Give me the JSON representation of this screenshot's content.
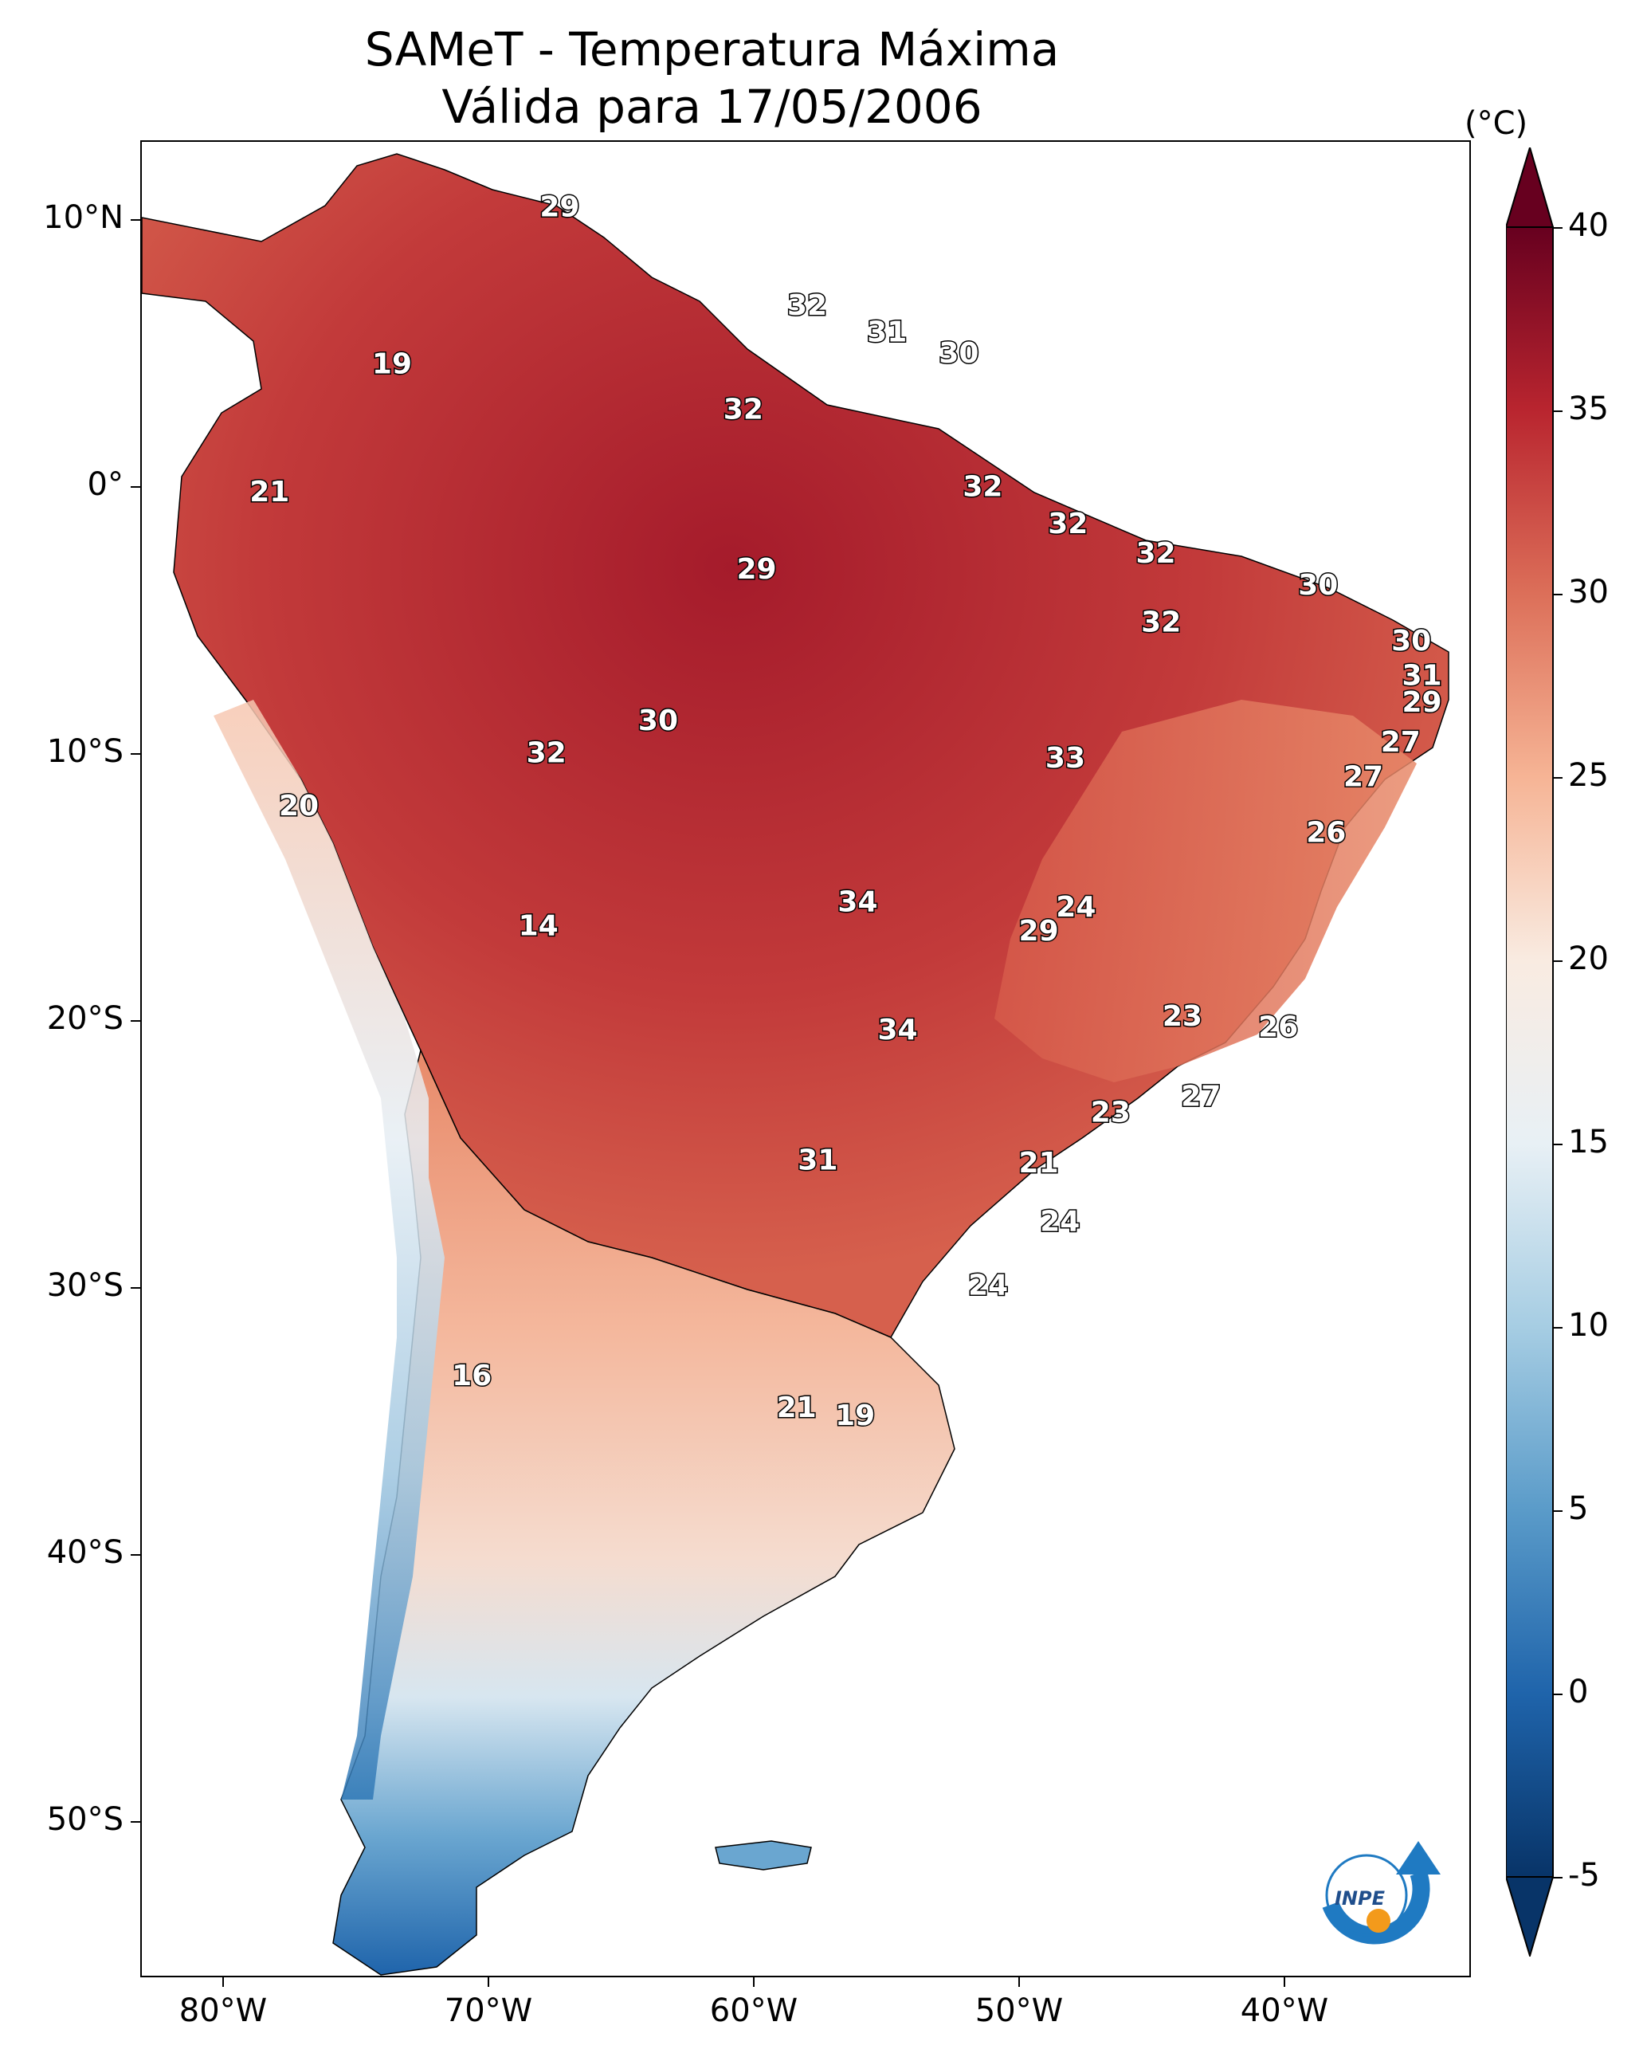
{
  "title": {
    "line1": "SAMeT - Temperatura Máxima",
    "line2": "Válida para 17/05/2006"
  },
  "axes": {
    "lat_ticks": [
      "10°N",
      "0°",
      "10°S",
      "20°S",
      "30°S",
      "40°S",
      "50°S"
    ],
    "lon_ticks": [
      "80°W",
      "70°W",
      "60°W",
      "50°W",
      "40°W"
    ]
  },
  "colorbar": {
    "unit": "(°C)",
    "ticks": [
      "40",
      "35",
      "30",
      "25",
      "20",
      "15",
      "10",
      "5",
      "0",
      "-5"
    ],
    "range": [
      -5,
      40
    ],
    "colors": [
      "#083468",
      "#1f64ab",
      "#5a9bc9",
      "#a6cde3",
      "#e8f0f5",
      "#f9ebe1",
      "#f6b495",
      "#dc6f59",
      "#b9252f",
      "#67001f"
    ]
  },
  "logo": {
    "text": "INPE",
    "icon": "inpe-logo-icon"
  },
  "chart_data": {
    "type": "heatmap",
    "title": "SAMeT - Temperatura Máxima",
    "subtitle": "Válida para 17/05/2006",
    "xlabel": "",
    "ylabel": "",
    "unit": "°C",
    "xlim": [
      -83,
      -33
    ],
    "ylim": [
      -56,
      13
    ],
    "station_labels": [
      {
        "lon": -67.3,
        "lat": 10.5,
        "value": "29"
      },
      {
        "lon": -58.0,
        "lat": 6.8,
        "value": "32"
      },
      {
        "lon": -55.0,
        "lat": 5.8,
        "value": "31"
      },
      {
        "lon": -52.3,
        "lat": 5.0,
        "value": "30"
      },
      {
        "lon": -73.6,
        "lat": 4.6,
        "value": "19"
      },
      {
        "lon": -60.4,
        "lat": 2.9,
        "value": "32"
      },
      {
        "lon": -51.4,
        "lat": 0.0,
        "value": "32"
      },
      {
        "lon": -48.2,
        "lat": -1.4,
        "value": "32"
      },
      {
        "lon": -78.2,
        "lat": -0.2,
        "value": "21"
      },
      {
        "lon": -44.9,
        "lat": -2.5,
        "value": "32"
      },
      {
        "lon": -59.9,
        "lat": -3.1,
        "value": "29"
      },
      {
        "lon": -38.8,
        "lat": -3.7,
        "value": "30"
      },
      {
        "lon": -44.7,
        "lat": -5.1,
        "value": "32"
      },
      {
        "lon": -35.3,
        "lat": -5.8,
        "value": "30"
      },
      {
        "lon": -34.9,
        "lat": -7.1,
        "value": "31"
      },
      {
        "lon": -34.9,
        "lat": -8.1,
        "value": "29"
      },
      {
        "lon": -63.6,
        "lat": -8.8,
        "value": "30"
      },
      {
        "lon": -35.7,
        "lat": -9.6,
        "value": "27"
      },
      {
        "lon": -67.8,
        "lat": -10.0,
        "value": "32"
      },
      {
        "lon": -48.3,
        "lat": -10.2,
        "value": "33"
      },
      {
        "lon": -37.1,
        "lat": -10.9,
        "value": "27"
      },
      {
        "lon": -77.1,
        "lat": -12.0,
        "value": "20"
      },
      {
        "lon": -38.5,
        "lat": -13.0,
        "value": "26"
      },
      {
        "lon": -56.1,
        "lat": -15.6,
        "value": "34"
      },
      {
        "lon": -47.9,
        "lat": -15.8,
        "value": "24"
      },
      {
        "lon": -49.3,
        "lat": -16.7,
        "value": "29"
      },
      {
        "lon": -68.1,
        "lat": -16.5,
        "value": "14"
      },
      {
        "lon": -43.9,
        "lat": -19.9,
        "value": "23"
      },
      {
        "lon": -54.6,
        "lat": -20.4,
        "value": "34"
      },
      {
        "lon": -40.3,
        "lat": -20.3,
        "value": "26"
      },
      {
        "lon": -43.2,
        "lat": -22.9,
        "value": "27"
      },
      {
        "lon": -46.6,
        "lat": -23.5,
        "value": "23"
      },
      {
        "lon": -57.6,
        "lat": -25.3,
        "value": "31"
      },
      {
        "lon": -49.3,
        "lat": -25.4,
        "value": "21"
      },
      {
        "lon": -48.5,
        "lat": -27.6,
        "value": "24"
      },
      {
        "lon": -51.2,
        "lat": -30.0,
        "value": "24"
      },
      {
        "lon": -70.6,
        "lat": -33.4,
        "value": "16"
      },
      {
        "lon": -58.4,
        "lat": -34.6,
        "value": "21"
      },
      {
        "lon": -56.2,
        "lat": -34.9,
        "value": "19"
      }
    ]
  }
}
